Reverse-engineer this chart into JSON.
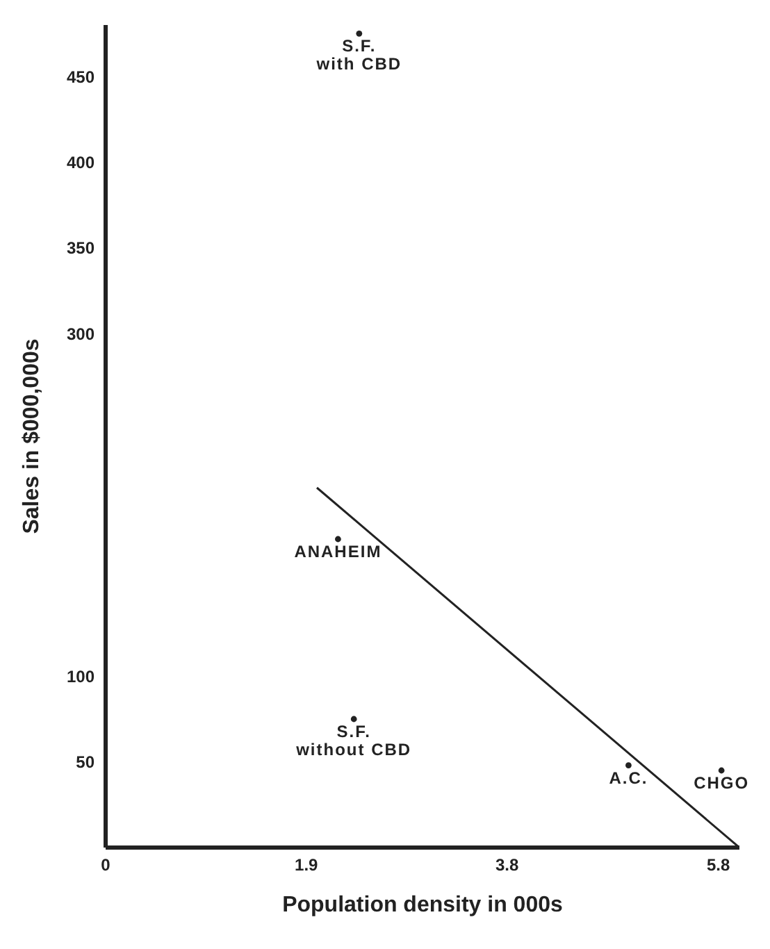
{
  "chart_data": {
    "type": "scatter",
    "xlabel": "Population density  in 000s",
    "ylabel": "Sales in $000,000s",
    "xlim": [
      0,
      6.0
    ],
    "xticks": [
      0,
      1.9,
      3.8,
      5.8
    ],
    "ylim": [
      0,
      480
    ],
    "yticks": [
      50,
      100,
      300,
      350,
      400,
      450
    ],
    "marker": "circle",
    "series": [
      {
        "color": "#222222",
        "x": [
          2.4,
          2.2,
          2.35,
          4.95,
          5.83
        ],
        "values": [
          475,
          180,
          75,
          48,
          45
        ]
      },
      {
        "type": "line",
        "color": "#222222",
        "x": [
          2.0,
          6.0
        ],
        "values": [
          210,
          0
        ],
        "line_style": "solid",
        "marker": "none"
      }
    ],
    "annotations": [
      {
        "text": "S.F.\nwith CBD",
        "x": 2.4,
        "y": 475
      },
      {
        "text": "ANAHEIM",
        "x": 2.2,
        "y": 180
      },
      {
        "text": "S.F.\nwithout CBD",
        "x": 2.35,
        "y": 75
      },
      {
        "text": "A.C.",
        "x": 4.95,
        "y": 48
      },
      {
        "text": "CHGO",
        "x": 5.83,
        "y": 45
      }
    ]
  }
}
